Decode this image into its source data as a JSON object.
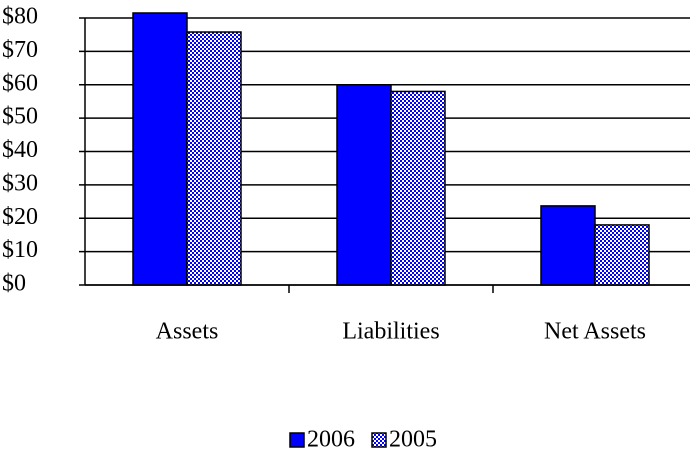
{
  "chart_data": {
    "type": "bar",
    "categories": [
      "Assets",
      "Liabilities",
      "Net Assets"
    ],
    "series": [
      {
        "name": "2006",
        "color": "#0000ff",
        "values": [
          81.5,
          60,
          23.7
        ]
      },
      {
        "name": "2005",
        "color": "#0000ff",
        "pattern": "checkerboard",
        "values": [
          75.8,
          58,
          18
        ]
      }
    ],
    "ylim": [
      0,
      80
    ],
    "yticks": [
      {
        "value": 0,
        "label": "$0"
      },
      {
        "value": 10,
        "label": "$10"
      },
      {
        "value": 20,
        "label": "$20"
      },
      {
        "value": 30,
        "label": "$30"
      },
      {
        "value": 40,
        "label": "$40"
      },
      {
        "value": 50,
        "label": "$50"
      },
      {
        "value": 60,
        "label": "$60"
      },
      {
        "value": 70,
        "label": "$70"
      },
      {
        "value": 80,
        "label": "$80"
      }
    ],
    "grid": true,
    "legend": "bottom"
  }
}
